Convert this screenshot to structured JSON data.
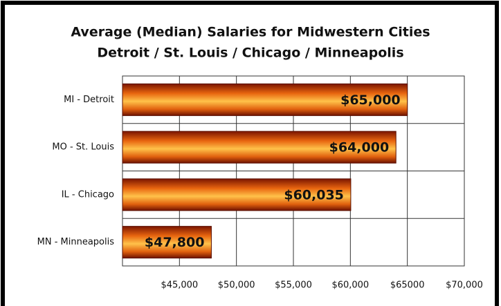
{
  "chart_data": {
    "type": "bar",
    "orientation": "horizontal",
    "title": "Average (Median) Salaries for Midwestern Cities",
    "subtitle": "Detroit / St. Louis / Chicago / Minneapolis",
    "categories": [
      "MI - Detroit",
      "MO - St. Louis",
      "IL - Chicago",
      "MN - Minneapolis"
    ],
    "values": [
      65000,
      64000,
      60035,
      47800
    ],
    "value_labels": [
      "$65,000",
      "$64,000",
      "$60,035",
      "$47,800"
    ],
    "color": "#e8650f",
    "xlim": [
      40000,
      70000
    ],
    "xticks": [
      {
        "value": 45000,
        "label": "$45,000"
      },
      {
        "value": 50000,
        "label": "$50,000"
      },
      {
        "value": 55000,
        "label": "$55,000"
      },
      {
        "value": 60000,
        "label": "$60,000"
      },
      {
        "value": 65000,
        "label": "$65000"
      },
      {
        "value": 70000,
        "label": "$70,000"
      }
    ],
    "grid": true
  }
}
